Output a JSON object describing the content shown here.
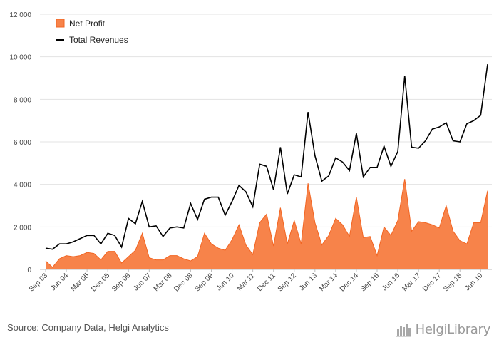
{
  "chart_data": {
    "type": "area",
    "y_ticks": [
      "0",
      "2 000",
      "4 000",
      "6 000",
      "8 000",
      "10 000",
      "12 000"
    ],
    "ylim": [
      0,
      12000
    ],
    "x_tick_labels": [
      "Sep 03",
      "Jun 04",
      "Mar 05",
      "Dec 05",
      "Sep 06",
      "Jun 07",
      "Mar 08",
      "Dec 08",
      "Sep 09",
      "Jun 10",
      "Mar 11",
      "Dec 11",
      "Sep 12",
      "Jun 13",
      "Mar 14",
      "Dec 14",
      "Sep 15",
      "Jun 16",
      "Mar 17",
      "Dec 17",
      "Sep 18",
      "Jun 19"
    ],
    "legend": [
      "Net Profit",
      "Total Revenues"
    ],
    "legend_position": "top-left",
    "grid": "horizontal",
    "colors": {
      "net_profit_fill": "#f7834a",
      "net_profit_line": "#f26522",
      "total_revenues": "#000000"
    },
    "x": [
      "Sep 03",
      "Dec 03",
      "Mar 04",
      "Jun 04",
      "Sep 04",
      "Dec 04",
      "Mar 05",
      "Jun 05",
      "Sep 05",
      "Dec 05",
      "Mar 06",
      "Jun 06",
      "Sep 06",
      "Dec 06",
      "Mar 07",
      "Jun 07",
      "Sep 07",
      "Dec 07",
      "Mar 08",
      "Jun 08",
      "Sep 08",
      "Dec 08",
      "Mar 09",
      "Jun 09",
      "Sep 09",
      "Dec 09",
      "Mar 10",
      "Jun 10",
      "Sep 10",
      "Dec 10",
      "Mar 11",
      "Jun 11",
      "Sep 11",
      "Dec 11",
      "Mar 12",
      "Jun 12",
      "Sep 12",
      "Dec 12",
      "Mar 13",
      "Jun 13",
      "Sep 13",
      "Dec 13",
      "Mar 14",
      "Jun 14",
      "Sep 14",
      "Dec 14",
      "Mar 15",
      "Jun 15",
      "Sep 15",
      "Dec 15",
      "Mar 16",
      "Jun 16",
      "Sep 16",
      "Dec 16",
      "Mar 17",
      "Jun 17",
      "Sep 17",
      "Dec 17",
      "Mar 18",
      "Jun 18",
      "Sep 18",
      "Dec 18",
      "Mar 19",
      "Jun 19",
      "Sep 19"
    ],
    "series": [
      {
        "name": "Net Profit",
        "values": [
          400,
          100,
          500,
          650,
          600,
          650,
          800,
          750,
          450,
          850,
          850,
          300,
          600,
          900,
          1700,
          550,
          450,
          450,
          650,
          650,
          500,
          400,
          600,
          1700,
          1200,
          1000,
          900,
          1400,
          2100,
          1150,
          700,
          2200,
          2600,
          1100,
          2900,
          1200,
          2300,
          1200,
          4050,
          2200,
          1150,
          1600,
          2400,
          2100,
          1550,
          3400,
          1500,
          1550,
          650,
          2000,
          1600,
          2300,
          4250,
          1800,
          2250,
          2200,
          2100,
          1950,
          3000,
          1800,
          1350,
          1200,
          2200,
          2200,
          3700
        ]
      },
      {
        "name": "Total Revenues",
        "values": [
          1000,
          950,
          1200,
          1200,
          1300,
          1450,
          1600,
          1600,
          1200,
          1700,
          1600,
          1050,
          2400,
          2150,
          3200,
          2000,
          2050,
          1550,
          1950,
          2000,
          1950,
          3100,
          2350,
          3300,
          3400,
          3400,
          2550,
          3200,
          3950,
          3650,
          2950,
          4950,
          4850,
          3750,
          5750,
          3550,
          4450,
          4350,
          7400,
          5350,
          4150,
          4400,
          5250,
          5050,
          4650,
          6400,
          4350,
          4800,
          4800,
          5800,
          4850,
          5550,
          9100,
          5750,
          5700,
          6050,
          6600,
          6700,
          6900,
          6050,
          6000,
          6850,
          7000,
          7250,
          9650
        ]
      }
    ]
  },
  "footer": {
    "source": "Source: Company Data, Helgi Analytics",
    "brand": "HelgiLibrary"
  }
}
